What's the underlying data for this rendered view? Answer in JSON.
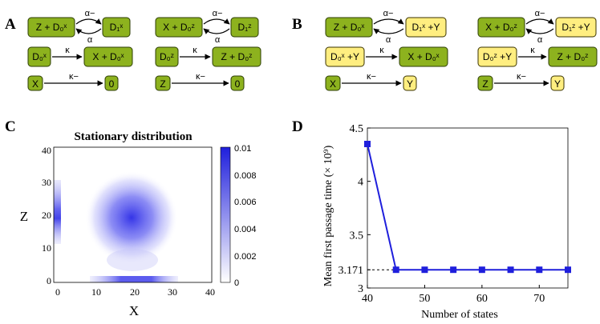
{
  "panels": {
    "A": {
      "letter": "A",
      "left": {
        "top_left": "Z + D₀ˣ",
        "top_right": "D₁ˣ",
        "top_rate_forward": "α−",
        "top_rate_back": "α",
        "mid_left": "D₀ˣ",
        "mid_right": "X + D₀ˣ",
        "mid_rate": "κ",
        "bot_left": "X",
        "bot_right": "0",
        "bot_rate": "κ−"
      },
      "right": {
        "top_left": "X + D₀ᶻ",
        "top_right": "D₁ᶻ",
        "top_rate_forward": "α−",
        "top_rate_back": "α",
        "mid_left": "D₀ᶻ",
        "mid_right": "Z + D₀ᶻ",
        "mid_rate": "κ",
        "bot_left": "Z",
        "bot_right": "0",
        "bot_rate": "κ−"
      }
    },
    "B": {
      "letter": "B",
      "left": {
        "top_left": "Z + D₀ˣ",
        "top_right": "D₁ˣ +Y",
        "top_rate_forward": "α−",
        "top_rate_back": "α",
        "mid_left": "D₀ˣ +Y",
        "mid_right": "X + D₀ˣ",
        "mid_rate": "κ",
        "bot_left": "X",
        "bot_right": "Y",
        "bot_rate": "κ−"
      },
      "right": {
        "top_left": "X + D₀ᶻ",
        "top_right": "D₁ᶻ +Y",
        "top_rate_forward": "α−",
        "top_rate_back": "α",
        "mid_left": "D₀ᶻ +Y",
        "mid_right": "Z + D₀ᶻ",
        "mid_rate": "κ",
        "bot_left": "Z",
        "bot_right": "Y",
        "bot_rate": "κ−"
      }
    },
    "C": {
      "letter": "C",
      "title": "Stationary distribution",
      "xlabel": "X",
      "ylabel": "Z",
      "xticks": [
        "0",
        "10",
        "20",
        "30",
        "40"
      ],
      "yticks": [
        "40",
        "30",
        "20",
        "10",
        "0"
      ],
      "colorbar_ticks": [
        "0.01",
        "0.008",
        "0.006",
        "0.004",
        "0.002",
        "0"
      ]
    },
    "D": {
      "letter": "D",
      "ylabel": "Mean first passage time (× 10⁹)",
      "xlabel": "Number of states",
      "annotation": "3.171"
    }
  },
  "colors": {
    "green": "#8db21e",
    "yellow": "#ffee80",
    "blue": "#1f1fdc"
  },
  "chart_data": {
    "type": "line",
    "x": [
      40,
      45,
      50,
      55,
      60,
      65,
      70,
      75
    ],
    "series": [
      {
        "values": [
          4.35,
          3.171,
          3.171,
          3.171,
          3.171,
          3.171,
          3.171,
          3.171
        ]
      }
    ],
    "xlabel": "Number of states",
    "ylabel": "Mean first passage time (× 10⁹)",
    "xticks": [
      "40",
      "50",
      "60",
      "70"
    ],
    "yticks": [
      "3",
      "3.171",
      "3.5",
      "4",
      "4.5"
    ],
    "xlim": [
      40,
      75
    ],
    "ylim": [
      3,
      4.5
    ],
    "reference_line": 3.171
  }
}
